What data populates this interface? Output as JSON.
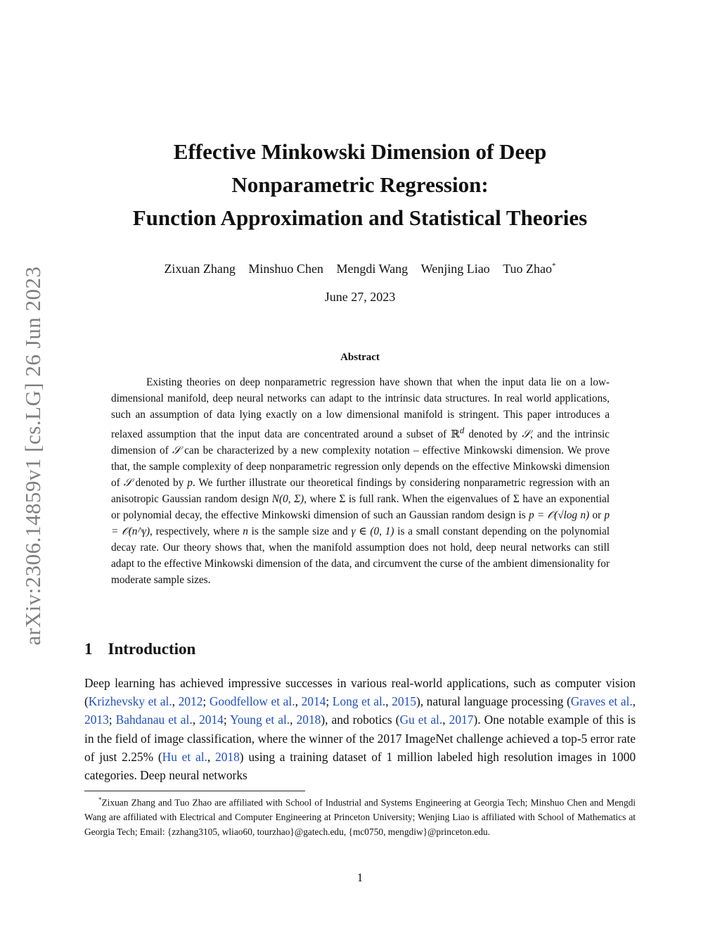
{
  "arxiv_id": "arXiv:2306.14859v1  [cs.LG]  26 Jun 2023",
  "title": {
    "line1": "Effective Minkowski Dimension of Deep",
    "line2": "Nonparametric Regression:",
    "line3": "Function Approximation and Statistical Theories"
  },
  "authors": [
    "Zixuan Zhang",
    "Minshuo Chen",
    "Mengdi Wang",
    "Wenjing Liao",
    "Tuo Zhao"
  ],
  "author_mark": "*",
  "date": "June 27, 2023",
  "abstract": {
    "heading": "Abstract",
    "p1": "Existing theories on deep nonparametric regression have shown that when the input data lie on a low-dimensional manifold, deep neural networks can adapt to the intrinsic data structures. In real world applications, such an assumption of data lying exactly on a low dimensional manifold is stringent. This paper introduces a relaxed assumption that the input data are concentrated around a subset of ",
    "rd_symbol": "ℝ",
    "rd_sup": "d",
    "p2": " denoted by ",
    "S1": "𝒮",
    "p3": ", and the intrinsic dimension of ",
    "S2": "𝒮",
    "p4": " can be characterized by a new complexity notation – effective Minkowski dimension. We prove that, the sample complexity of deep nonparametric regression only depends on the effective Minkowski dimension of ",
    "S3": "𝒮",
    "p5": " denoted by ",
    "p_var": "p",
    "p6": ". We further illustrate our theoretical findings by considering nonparametric regression with an anisotropic Gaussian random design ",
    "normal": "N(0, Σ)",
    "p7": ", where Σ is full rank. When the eigenvalues of Σ have an exponential or polynomial decay, the effective Minkowski dimension of such an Gaussian random design is ",
    "expr1": "p = 𝒪(√log n)",
    "p8": " or ",
    "expr2": "p = 𝒪(n^γ)",
    "p9": ", respectively, where ",
    "n_var": "n",
    "p10": " is the sample size and ",
    "gamma_expr": "γ ∈ (0, 1)",
    "p11": " is a small constant depending on the polynomial decay rate. Our theory shows that, when the manifold assumption does not hold, deep neural networks can still adapt to the effective Minkowski dimension of the data, and circumvent the curse of the ambient dimensionality for moderate sample sizes."
  },
  "section": {
    "number": "1",
    "title": "Introduction",
    "t1": "Deep learning has achieved impressive successes in various real-world applications, such as computer vision (",
    "c1": "Krizhevsky et al.",
    "s1": ", ",
    "y1": "2012",
    "t2": "; ",
    "c2": "Goodfellow et al.",
    "s2": ", ",
    "y2": "2014",
    "t3": "; ",
    "c3": "Long et al.",
    "s3": ", ",
    "y3": "2015",
    "t4": "), natural language processing (",
    "c4": "Graves et al.",
    "s4": ", ",
    "y4": "2013",
    "t5": "; ",
    "c5": "Bahdanau et al.",
    "s5": ", ",
    "y5": "2014",
    "t6": "; ",
    "c6": "Young et al.",
    "s6": ", ",
    "y6": "2018",
    "t7": "), and robotics (",
    "c7": "Gu et al.",
    "s7": ", ",
    "y7": "2017",
    "t8": "). One notable example of this is in the field of image classification, where the winner of the 2017 ImageNet challenge achieved a top-5 error rate of just 2.25% (",
    "c8": "Hu et al.",
    "s8": ", ",
    "y8": "2018",
    "t9": ") using a training dataset of 1 million labeled high resolution images in 1000 categories. Deep neural networks"
  },
  "footnote": {
    "mark": "*",
    "text": "Zixuan Zhang and Tuo Zhao are affiliated with School of Industrial and Systems Engineering at Georgia Tech; Minshuo Chen and Mengdi Wang are affiliated with Electrical and Computer Engineering at Princeton University; Wenjing Liao is affiliated with School of Mathematics at Georgia Tech; Email: {zzhang3105, wliao60, tourzhao}@gatech.edu, {mc0750, mengdiw}@princeton.edu."
  },
  "page_number": "1",
  "colors": {
    "citation": "#1f4fbf",
    "stamp": "#7f7f7f"
  }
}
